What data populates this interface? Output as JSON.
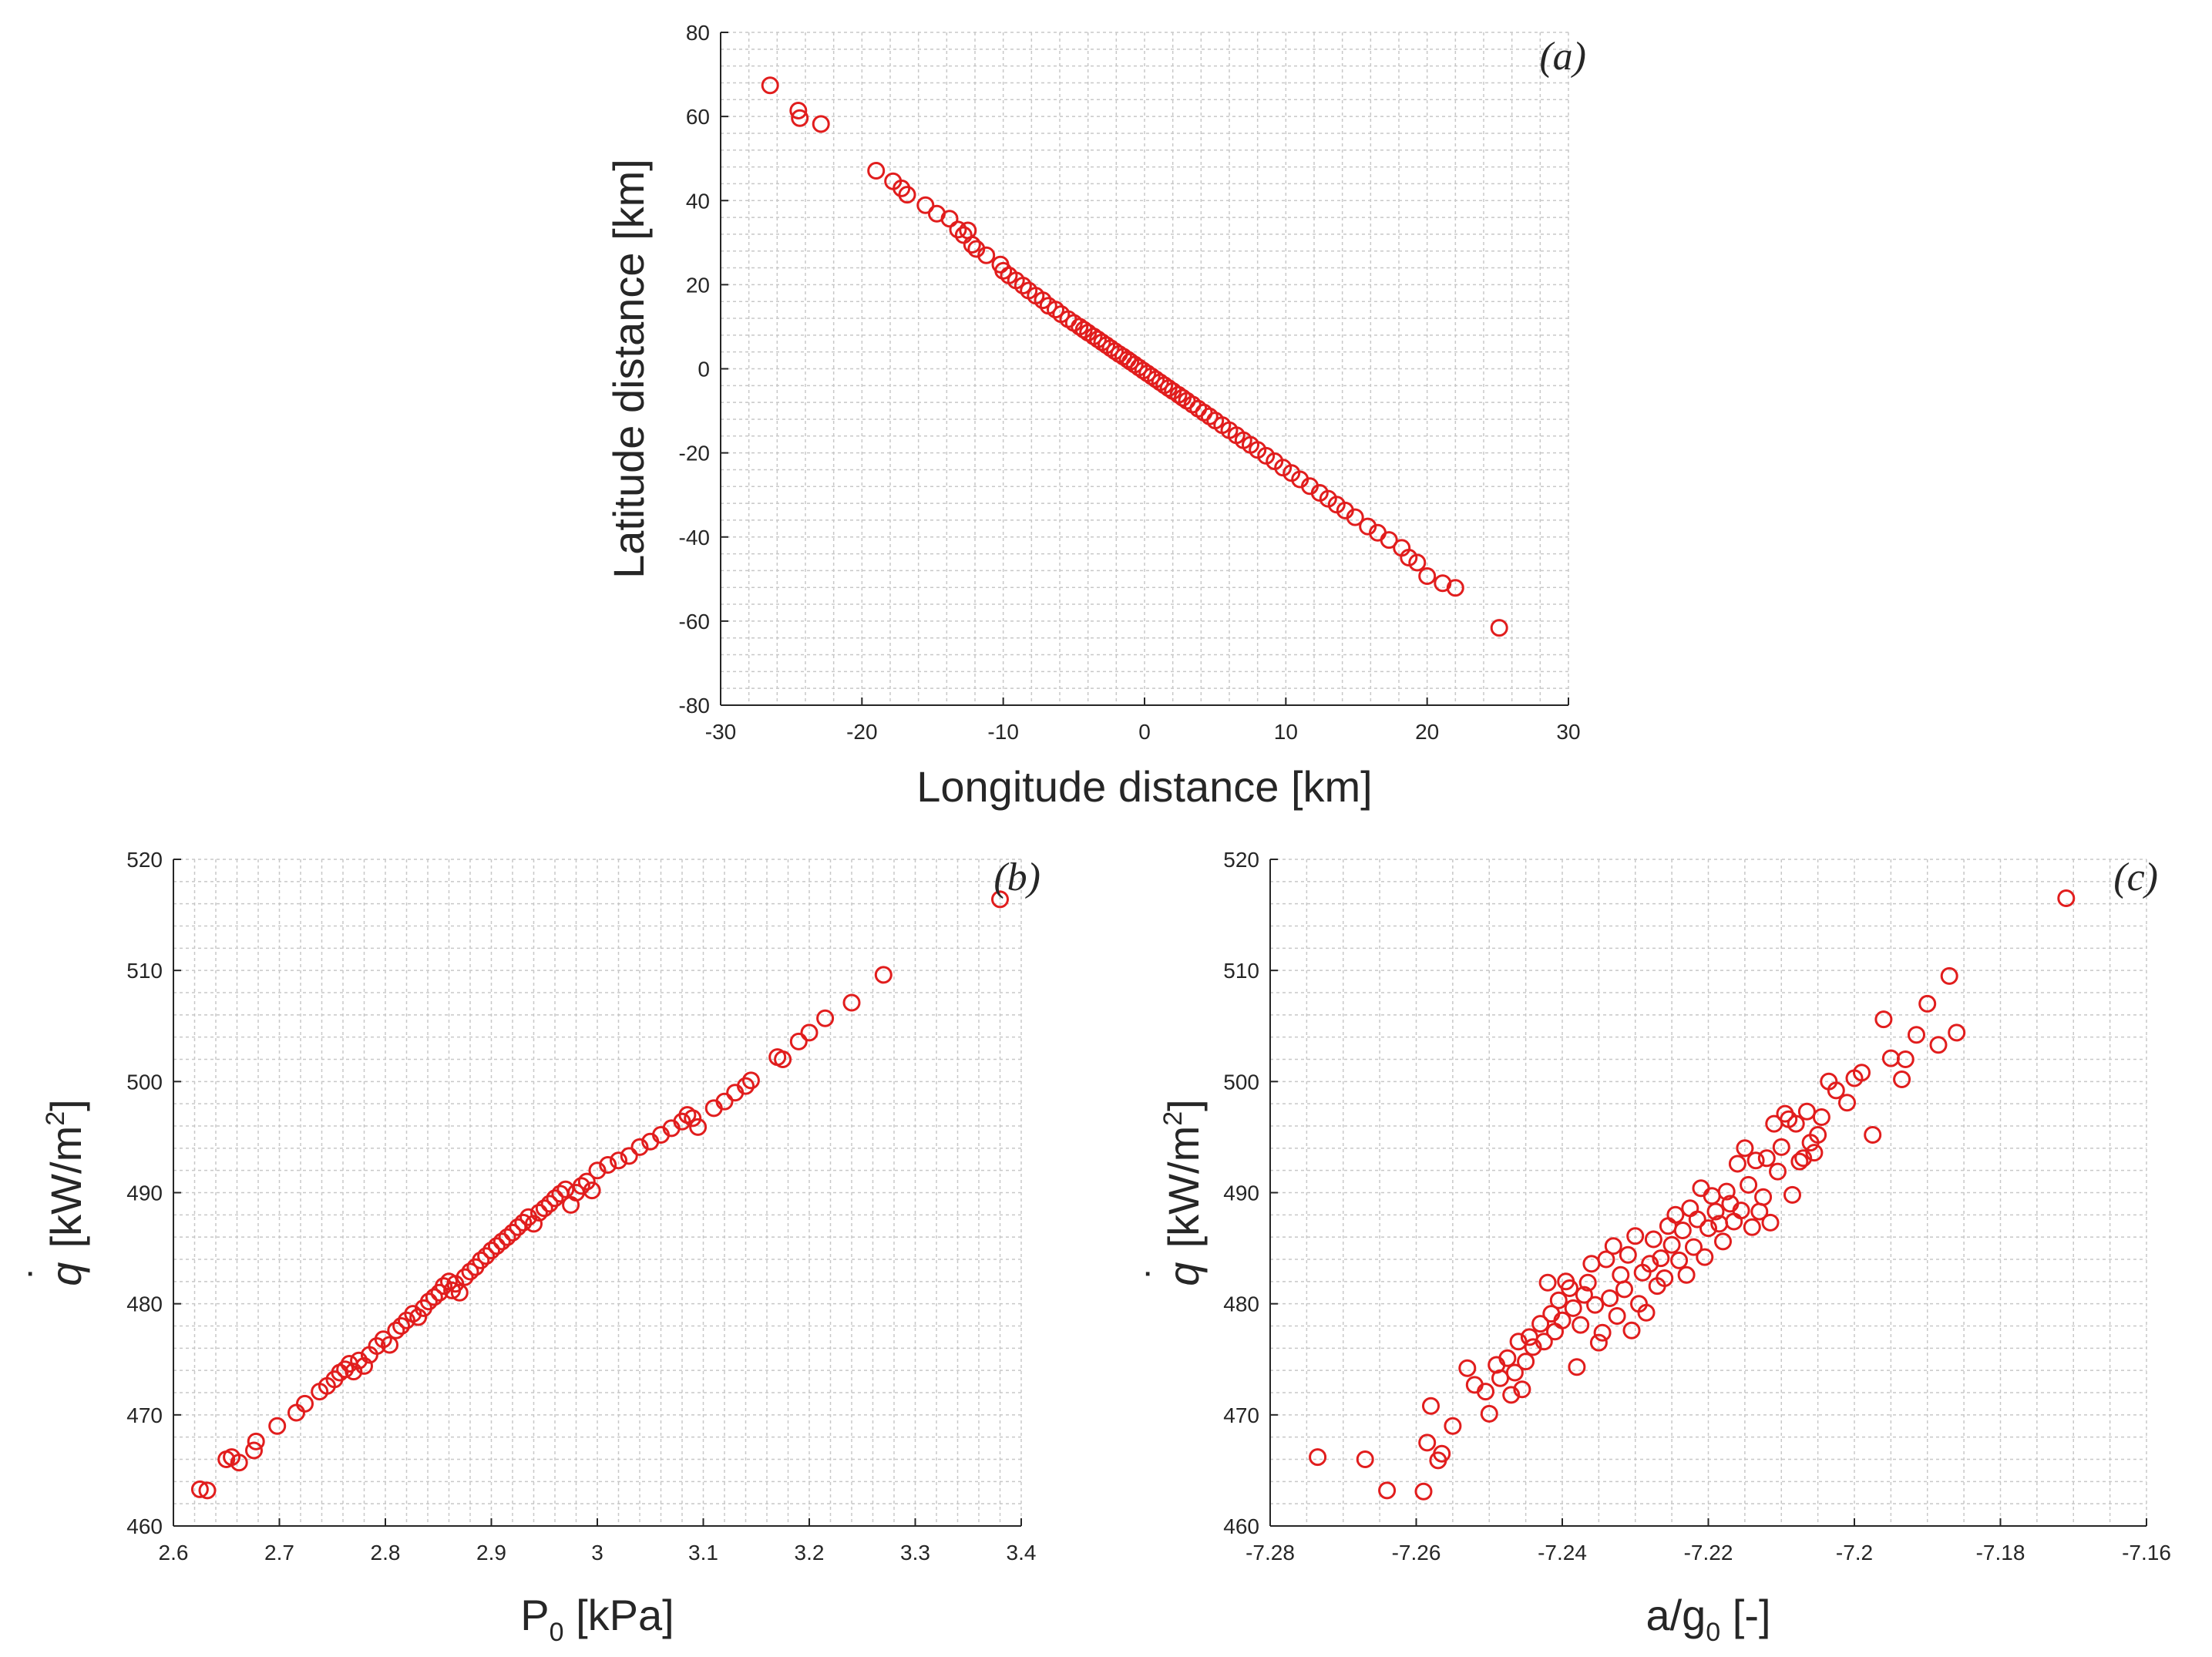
{
  "marker_color": "#e11d1d",
  "chart_data": [
    {
      "id": "a",
      "panel_label": "(a)",
      "type": "scatter",
      "marker": "circle",
      "xlabel": "Longitude distance [km]",
      "ylabel": "Latitude distance [km]",
      "xlim": [
        -30,
        30
      ],
      "ylim": [
        -80,
        80
      ],
      "xticks": [
        "-30",
        "-20",
        "-10",
        "0",
        "10",
        "20",
        "30"
      ],
      "yticks": [
        "-80",
        "-60",
        "-40",
        "-20",
        "0",
        "20",
        "40",
        "60",
        "80"
      ],
      "grid": "major and minor, dotted",
      "x": [
        -26.5,
        -24.5,
        -24.4,
        -22.9,
        -19.0,
        -17.8,
        -17.2,
        -16.8,
        -15.5,
        -14.7,
        -13.8,
        -13.2,
        -12.8,
        -12.5,
        -12.2,
        -11.9,
        -11.2,
        -10.2,
        -10.0,
        -9.6,
        -9.1,
        -8.6,
        -8.2,
        -7.7,
        -7.2,
        -6.8,
        -6.3,
        -5.9,
        -5.4,
        -5.0,
        -4.6,
        -4.3,
        -4.0,
        -3.6,
        -3.3,
        -3.0,
        -2.7,
        -2.4,
        -2.1,
        -1.8,
        -1.5,
        -1.2,
        -1.0,
        -0.7,
        -0.4,
        -0.1,
        0.2,
        0.5,
        0.8,
        1.1,
        1.4,
        1.7,
        2.0,
        2.4,
        2.7,
        3.0,
        3.4,
        3.8,
        4.2,
        4.6,
        5.0,
        5.5,
        6.0,
        6.5,
        7.0,
        7.5,
        8.0,
        8.6,
        9.2,
        9.8,
        10.4,
        11.0,
        11.7,
        12.4,
        13.0,
        13.6,
        14.2,
        14.9,
        15.8,
        16.5,
        17.3,
        18.2,
        18.7,
        19.3,
        20.0,
        21.1,
        22.0,
        25.1
      ],
      "y": [
        67.4,
        61.4,
        59.6,
        58.2,
        47.1,
        44.6,
        42.9,
        41.4,
        38.9,
        36.9,
        35.7,
        33.1,
        31.8,
        32.9,
        29.5,
        28.5,
        27.0,
        24.8,
        23.3,
        22.2,
        21.0,
        19.8,
        18.6,
        17.4,
        16.3,
        15.0,
        14.1,
        13.0,
        11.8,
        10.9,
        10.0,
        9.3,
        8.6,
        7.7,
        7.0,
        6.3,
        5.6,
        4.9,
        4.2,
        3.5,
        2.9,
        2.2,
        1.7,
        1.0,
        0.3,
        -0.4,
        -1.1,
        -1.8,
        -2.5,
        -3.2,
        -3.9,
        -4.6,
        -5.3,
        -6.2,
        -6.9,
        -7.6,
        -8.5,
        -9.5,
        -10.4,
        -11.3,
        -12.3,
        -13.4,
        -14.6,
        -15.8,
        -17.0,
        -18.1,
        -19.3,
        -20.7,
        -22.0,
        -23.5,
        -24.8,
        -26.3,
        -27.9,
        -29.5,
        -30.9,
        -32.3,
        -33.7,
        -35.3,
        -37.5,
        -39.0,
        -40.7,
        -42.6,
        -44.9,
        -46.1,
        -49.3,
        -51.0,
        -52.1,
        -61.6
      ]
    },
    {
      "id": "b",
      "panel_label": "(b)",
      "type": "scatter",
      "marker": "circle",
      "xlabel_main": "P",
      "xlabel_sub": "0",
      "xlabel_rest": " [kPa]",
      "ylabel_main": "q",
      "ylabel_dot": "˙",
      "ylabel_rest": " [kW/m",
      "ylabel_sup": "2",
      "ylabel_close": "]",
      "xlim": [
        2.6,
        3.4
      ],
      "ylim": [
        460,
        520
      ],
      "xticks": [
        "2.6",
        "2.7",
        "2.8",
        "2.9",
        "3",
        "3.1",
        "3.2",
        "3.3",
        "3.4"
      ],
      "yticks": [
        "460",
        "470",
        "480",
        "490",
        "500",
        "510",
        "520"
      ],
      "grid": "major and minor, dotted",
      "x": [
        2.625,
        2.632,
        2.65,
        2.655,
        2.662,
        2.676,
        2.678,
        2.698,
        2.716,
        2.724,
        2.738,
        2.745,
        2.752,
        2.757,
        2.762,
        2.766,
        2.77,
        2.775,
        2.78,
        2.785,
        2.792,
        2.798,
        2.804,
        2.81,
        2.815,
        2.82,
        2.826,
        2.831,
        2.836,
        2.841,
        2.846,
        2.851,
        2.855,
        2.86,
        2.863,
        2.866,
        2.87,
        2.875,
        2.88,
        2.885,
        2.89,
        2.895,
        2.9,
        2.905,
        2.91,
        2.915,
        2.92,
        2.925,
        2.93,
        2.935,
        2.94,
        2.945,
        2.95,
        2.955,
        2.96,
        2.965,
        2.97,
        2.975,
        2.98,
        2.985,
        2.99,
        2.995,
        3.0,
        3.01,
        3.02,
        3.03,
        3.04,
        3.05,
        3.06,
        3.07,
        3.08,
        3.085,
        3.09,
        3.095,
        3.11,
        3.12,
        3.13,
        3.14,
        3.145,
        3.17,
        3.175,
        3.19,
        3.2,
        3.215,
        3.24,
        3.27,
        3.38
      ],
      "y": [
        463.3,
        463.2,
        466.0,
        466.2,
        465.7,
        466.8,
        467.6,
        469.0,
        470.2,
        471.0,
        472.1,
        472.6,
        473.2,
        473.8,
        474.1,
        474.6,
        473.9,
        474.9,
        474.4,
        475.4,
        476.2,
        476.8,
        476.3,
        477.6,
        478.0,
        478.5,
        479.1,
        478.8,
        479.6,
        480.2,
        480.6,
        481.0,
        481.6,
        482.0,
        481.2,
        481.8,
        481.0,
        482.4,
        482.9,
        483.3,
        483.9,
        484.3,
        484.8,
        485.2,
        485.6,
        486.0,
        486.4,
        486.9,
        487.3,
        487.8,
        487.2,
        488.2,
        488.6,
        489.0,
        489.5,
        489.9,
        490.3,
        488.9,
        490.0,
        490.6,
        491.0,
        490.2,
        492.0,
        492.5,
        492.9,
        493.3,
        494.1,
        494.6,
        495.2,
        495.8,
        496.4,
        497.0,
        496.7,
        495.9,
        497.6,
        498.2,
        499.0,
        499.6,
        500.1,
        502.2,
        502.0,
        503.6,
        504.4,
        505.7,
        507.1,
        509.6,
        516.4
      ]
    },
    {
      "id": "c",
      "panel_label": "(c)",
      "type": "scatter",
      "marker": "circle",
      "xlabel_main": "a/g",
      "xlabel_sub": "0",
      "xlabel_rest": " [-]",
      "ylabel_main": "q",
      "ylabel_dot": "˙",
      "ylabel_rest": " [kW/m",
      "ylabel_sup": "2",
      "ylabel_close": "]",
      "xlim": [
        -7.28,
        -7.16
      ],
      "ylim": [
        460,
        520
      ],
      "xticks": [
        "-7.28",
        "-7.26",
        "-7.24",
        "-7.22",
        "-7.2",
        "-7.18",
        "-7.16"
      ],
      "yticks": [
        "460",
        "470",
        "480",
        "490",
        "500",
        "510",
        "520"
      ],
      "grid": "major and minor, dotted",
      "x": [
        -7.2735,
        -7.267,
        -7.264,
        -7.259,
        -7.2585,
        -7.258,
        -7.257,
        -7.2565,
        -7.255,
        -7.253,
        -7.252,
        -7.2505,
        -7.25,
        -7.249,
        -7.2485,
        -7.2475,
        -7.247,
        -7.2465,
        -7.246,
        -7.2455,
        -7.245,
        -7.2445,
        -7.244,
        -7.243,
        -7.2425,
        -7.242,
        -7.2415,
        -7.241,
        -7.2405,
        -7.24,
        -7.2395,
        -7.239,
        -7.2385,
        -7.238,
        -7.2375,
        -7.237,
        -7.2365,
        -7.236,
        -7.2355,
        -7.235,
        -7.2345,
        -7.234,
        -7.2335,
        -7.233,
        -7.2325,
        -7.232,
        -7.2315,
        -7.231,
        -7.2305,
        -7.23,
        -7.2295,
        -7.229,
        -7.2285,
        -7.228,
        -7.2275,
        -7.227,
        -7.2265,
        -7.226,
        -7.2255,
        -7.225,
        -7.2245,
        -7.224,
        -7.2235,
        -7.223,
        -7.2225,
        -7.222,
        -7.2215,
        -7.221,
        -7.2205,
        -7.22,
        -7.2195,
        -7.219,
        -7.2185,
        -7.218,
        -7.2175,
        -7.217,
        -7.2165,
        -7.216,
        -7.2155,
        -7.215,
        -7.2145,
        -7.214,
        -7.2135,
        -7.213,
        -7.2125,
        -7.212,
        -7.2115,
        -7.211,
        -7.2105,
        -7.21,
        -7.2095,
        -7.209,
        -7.2085,
        -7.208,
        -7.2075,
        -7.207,
        -7.2065,
        -7.206,
        -7.2055,
        -7.205,
        -7.2045,
        -7.2035,
        -7.2025,
        -7.201,
        -7.2,
        -7.199,
        -7.1975,
        -7.196,
        -7.195,
        -7.1935,
        -7.193,
        -7.1915,
        -7.19,
        -7.1885,
        -7.187,
        -7.186,
        -7.171
      ],
      "y": [
        466.2,
        466.0,
        463.2,
        463.1,
        467.5,
        470.8,
        465.9,
        466.5,
        469.0,
        474.2,
        472.7,
        472.1,
        470.1,
        474.5,
        473.3,
        475.1,
        471.8,
        473.8,
        476.6,
        472.3,
        474.8,
        477.0,
        476.1,
        478.2,
        476.6,
        481.9,
        479.1,
        477.5,
        480.3,
        478.5,
        482.0,
        481.4,
        479.6,
        474.3,
        478.1,
        480.8,
        481.9,
        483.6,
        479.9,
        476.5,
        477.4,
        484.0,
        480.5,
        485.2,
        478.9,
        482.6,
        481.3,
        484.4,
        477.6,
        486.1,
        480.0,
        482.8,
        479.2,
        483.6,
        485.8,
        481.6,
        484.1,
        482.3,
        487.0,
        485.3,
        488.0,
        483.9,
        486.6,
        482.6,
        488.6,
        485.1,
        487.6,
        490.4,
        484.2,
        486.8,
        489.7,
        488.3,
        487.2,
        485.6,
        490.1,
        489.0,
        487.4,
        492.6,
        488.4,
        494.0,
        490.7,
        486.9,
        492.9,
        488.3,
        489.6,
        493.1,
        487.3,
        496.2,
        491.9,
        494.1,
        497.1,
        496.6,
        489.8,
        496.2,
        492.8,
        493.1,
        497.3,
        494.5,
        493.6,
        495.2,
        496.8,
        500.0,
        499.2,
        498.1,
        500.3,
        500.8,
        495.2,
        505.6,
        502.1,
        500.2,
        502.0,
        504.2,
        507.0,
        503.3,
        509.5,
        504.4,
        516.5
      ]
    }
  ]
}
